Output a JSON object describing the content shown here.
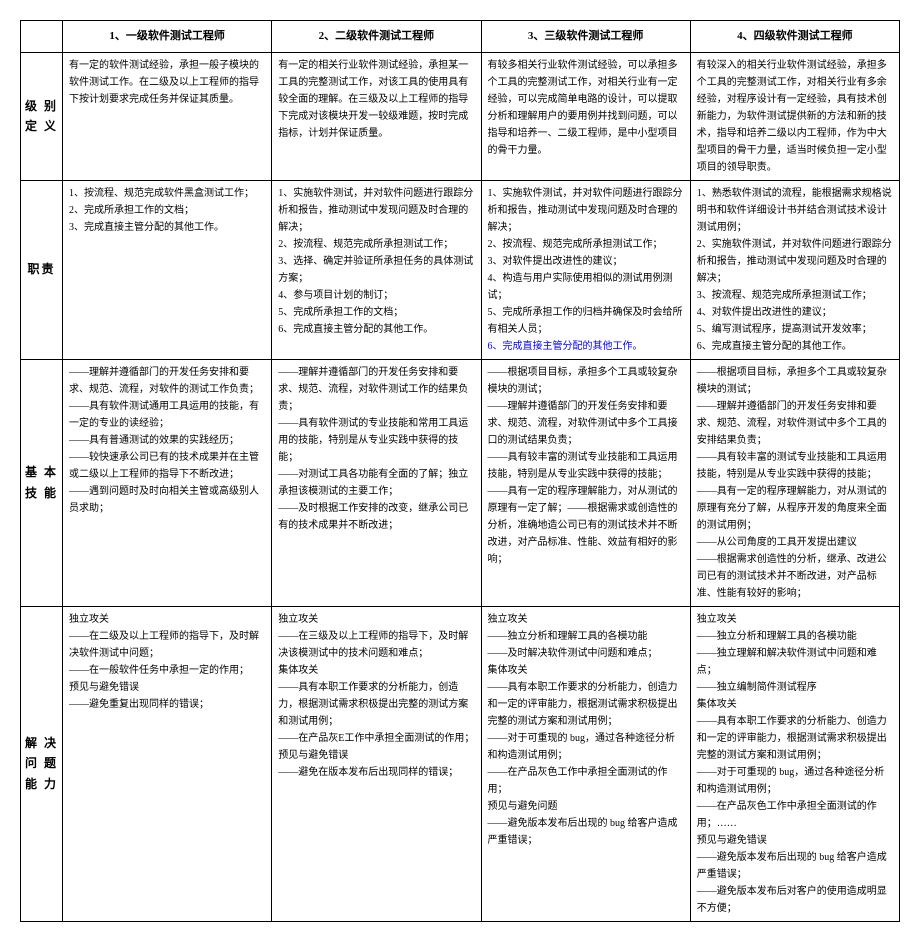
{
  "headers": {
    "h1": "1、一级软件测试工程师",
    "h2": "2、二级软件测试工程师",
    "h3": "3、三级软件测试工程师",
    "h4": "4、四级软件测试工程师"
  },
  "rows": {
    "level_def_label": "级 别 定 义",
    "responsibility_label": "职责",
    "basic_skill_label": "基 本 技 能",
    "solve_label": "解 决 问 题 能 力"
  },
  "level_def": {
    "c1": "有一定的软件测试经验，承担一般子模块的软件测试工作。在二级及以上工程师的指导下按计划要求完成任务并保证其质量。",
    "c2": "有一定的相关行业软件测试经验，承担某一工具的完整测试工作，对该工具的使用具有较全面的理解。在三级及以上工程师的指导下完成对该模块开发一较级难题，按时完成指标，计划并保证质量。",
    "c3": "有较多相关行业软件测试经验，可以承担多个工具的完整测试工作，对相关行业有一定经验，可以完成简单电路的设计，可以提取分析和理解用户的要用例并找到问题，可以指导和培养一、二级工程师，是中小型项目的骨干力量。",
    "c4": "有较深入的相关行业软件测试经验，承担多个工具的完整测试工作，对相关行业有多余经验，对程序设计有一定经验，具有技术创新能力，为软件测试提供新的方法和新的技术，指导和培养二级以内工程师，作为中大型项目的骨干力量，适当时候负担一定小型项目的领导职责。"
  },
  "responsibility": {
    "c1": {
      "i1": "1、按流程、规范完成软件黑盒测试工作；",
      "i2": "2、完成所承担工作的文档；",
      "i3": "3、完成直接主管分配的其他工作。"
    },
    "c2": {
      "i1": "1、实施软件测试，并对软件问题进行跟踪分析和报告，推动测试中发现问题及时合理的解决；",
      "i2": "2、按流程、规范完成所承担测试工作；",
      "i3": "3、选择、确定并验证所承担任务的具体测试方案；",
      "i4": "4、参与项目计划的制订；",
      "i5": "5、完成所承担工作的文档；",
      "i6": "6、完成直接主管分配的其他工作。"
    },
    "c3": {
      "i1": "1、实施软件测试，并对软件问题进行跟踪分析和报告，推动测试中发现问题及时合理的解决；",
      "i2": "2、按流程、规范完成所承担测试工作；",
      "i3": "3、对软件提出改进性的建议；",
      "i4": "4、构造与用户实际使用相似的测试用例测试；",
      "i5": "5、完成所承担工作的归档并确保及时会给所有相关人员；",
      "i6": "6、完成直接主管分配的其他工作。"
    },
    "c4": {
      "i1": "1、熟悉软件测试的流程，能根据需求规格说明书和软件详细设计书并结合测试技术设计测试用例；",
      "i2": "2、实施软件测试，并对软件问题进行跟踪分析和报告，推动测试中发现问题及时合理的解决；",
      "i3": "3、按流程、规范完成所承担测试工作；",
      "i4": "4、对软件提出改进性的建议；",
      "i5": "5、编写测试程序，提高测试开发效率；",
      "i6": "6、完成直接主管分配的其他工作。"
    }
  },
  "basic_skill": {
    "c1": {
      "i1": "——理解并遵循部门的开发任务安排和要求、规范、流程，对软件的测试工作负责；",
      "i2": "——具有软件测试通用工具运用的技能，有一定的专业的读经验；",
      "i3": "——具有普通测试的效果的实践经历；",
      "i4": "——较快速承公司已有的技术成果并在主管或二级以上工程师的指导下不断改进；",
      "i5": "——遇到问题时及时向相关主管或高级别人员求助；"
    },
    "c2": {
      "i1": "——理解并遵循部门的开发任务安排和要求、规范、流程，对软件测试工作的结果负责；",
      "i2": "——具有软件测试的专业技能和常用工具运用的技能，特别是从专业实践中获得的技能；",
      "i3": "——对测试工具各功能有全面的了解；独立承担该模测试的主要工作；",
      "i4": "——及时根据工作安排的改变，继承公司已有的技术成果并不断改进；"
    },
    "c3": {
      "i1": "——根据项目目标，承担多个工具或较复杂模块的测试；",
      "i2": "——理解并遵循部门的开发任务安排和要求、规范、流程，对软件测试中多个工具接口的测试结果负责；",
      "i3": "——具有较丰富的测试专业技能和工具运用技能，特别是从专业实践中获得的技能；",
      "i4": "——具有一定的程序理解能力，对从测试的原理有一定了解；——根据需求或创造性的分析，准确地造公司已有的测试技术并不断改进，对产品标准、性能、效益有相好的影响；"
    },
    "c4": {
      "i1": "——根据项目目标，承担多个工具或较复杂模块的测试；",
      "i2": "——理解并遵循部门的开发任务安排和要求、规范、流程，对软件测试中多个工具的安排结果负责；",
      "i3": "——具有较丰富的测试专业技能和工具运用技能，特别是从专业实践中获得的技能；",
      "i4": "——具有一定的程序理解能力，对从测试的原理有充分了解，从程序开发的角度来全面的测试用例；",
      "i5": "——从公司角度的工具开发提出建议",
      "i6": "——根据需求创造性的分析，继承、改进公司已有的测试技术并不断改进，对产品标准、性能有较好的影响；"
    }
  },
  "solve": {
    "c1": {
      "t1": "独立攻关",
      "i1": "——在二级及以上工程师的指导下，及时解决软件测试中问题；",
      "i2": "——在一般软件任务中承担一定的作用；",
      "t2": "预见与避免错误",
      "i3": "——避免重复出现同样的错误；"
    },
    "c2": {
      "t1": "独立攻关",
      "i1": "——在三级及以上工程师的指导下，及时解决该模测试中的技术问题和难点；",
      "t2": "集体攻关",
      "i2": "——具有本职工作要求的分析能力，创造力，根据测试需求积极提出完整的测试方案和测试用例；",
      "i3": "——在产品灰E工作中承担全面测试的作用；",
      "t3": "预见与避免错误",
      "i4": "——避免在版本发布后出现同样的错误；"
    },
    "c3": {
      "t1": "独立攻关",
      "i1": "——独立分析和理解工具的各模功能",
      "i2": "——及时解决软件测试中问题和难点；",
      "t2": "集体攻关",
      "i3": "——具有本职工作要求的分析能力，创造力和一定的评审能力，根据测试需求积极提出完整的测试方案和测试用例；",
      "i4": "——对于可重现的 bug，通过各种途径分析和构造测试用例；",
      "i5": "——在产品灰色工作中承担全面测试的作用；",
      "t3": "预见与避免问题",
      "i6": "——避免版本发布后出现的 bug 给客户造成严重错误；"
    },
    "c4": {
      "t1": "独立攻关",
      "i1": "——独立分析和理解工具的各模功能",
      "i2": "——独立理解和解决软件测试中问题和难点；",
      "i3": "——独立编制简件测试程序",
      "t2": "集体攻关",
      "i4": "——具有本职工作要求的分析能力、创造力和一定的评审能力，根据测试需求积极提出完整的测试方案和测试用例；",
      "i5": "——对于可重现的 bug，通过各种途径分析和构造测试用例；",
      "i6": "——在产品灰色工作中承担全面测试的作用；……",
      "t3": "预见与避免错误",
      "i7": "——避免版本发布后出现的 bug 给客户造成严重错误；",
      "i8": "——避免版本发布后对客户的使用造成明显不方便；"
    }
  }
}
